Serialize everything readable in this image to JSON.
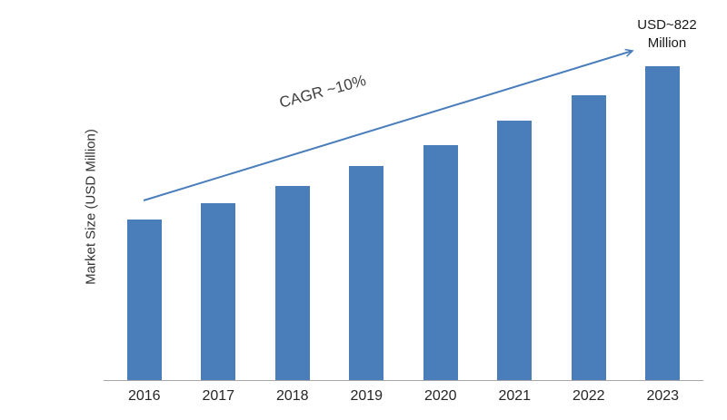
{
  "chart_data": {
    "type": "bar",
    "categories": [
      "2016",
      "2017",
      "2018",
      "2019",
      "2020",
      "2021",
      "2022",
      "2023"
    ],
    "values": [
      422,
      464,
      510,
      561,
      617,
      679,
      747,
      822
    ],
    "title": "",
    "xlabel": "",
    "ylabel": "Market Size (USD Million)",
    "ylim": [
      0,
      900
    ],
    "grid": false,
    "legend": "none",
    "bar_color": "#4A7EBB",
    "axis_color": "#A6A6A6",
    "annotations": {
      "cagr_label": "CAGR ~10%",
      "end_value_line1": "USD~822",
      "end_value_line2": "Million",
      "arrow_color": "#4A7EBB"
    }
  }
}
